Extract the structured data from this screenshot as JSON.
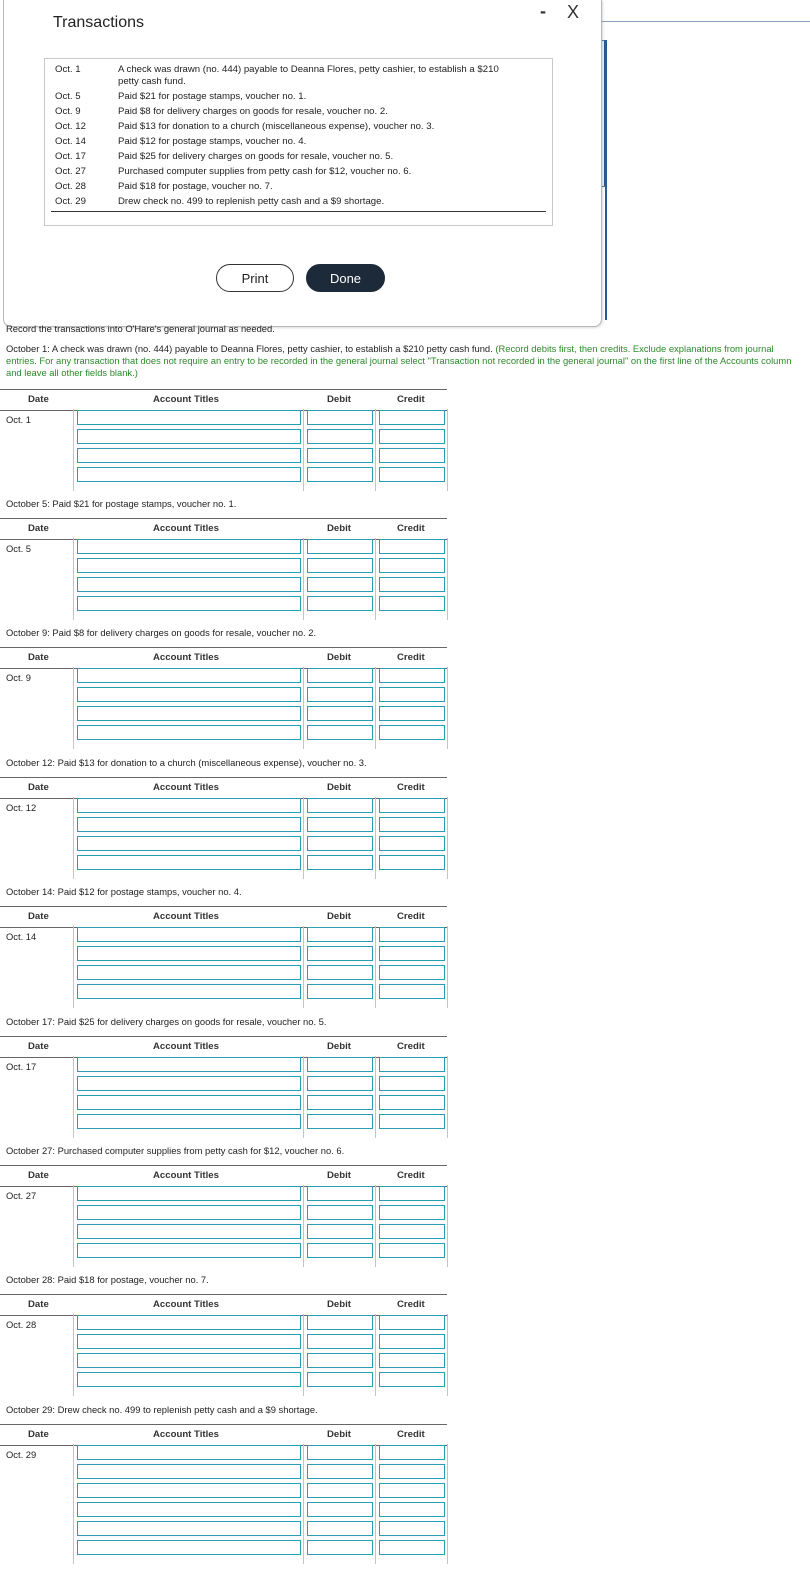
{
  "modal": {
    "title": "Transactions",
    "minimize": "-",
    "close": "X",
    "transactions": [
      {
        "date": "Oct. 1",
        "text": "A check was drawn (no. 444) payable to Deanna Flores, petty cashier, to establish a $210"
      },
      {
        "date": "",
        "text": "petty cash fund."
      },
      {
        "date": "Oct. 5",
        "text": "Paid $21 for postage stamps, voucher no. 1."
      },
      {
        "date": "Oct. 9",
        "text": "Paid $8 for delivery charges on goods for resale, voucher no. 2."
      },
      {
        "date": "Oct. 12",
        "text": "Paid $13 for donation to a church (miscellaneous expense), voucher no. 3."
      },
      {
        "date": "Oct. 14",
        "text": "Paid $12 for postage stamps, voucher no. 4."
      },
      {
        "date": "Oct. 17",
        "text": "Paid $25 for delivery charges on goods for resale, voucher no. 5."
      },
      {
        "date": "Oct. 27",
        "text": "Purchased computer supplies from petty cash for $12, voucher no. 6."
      },
      {
        "date": "Oct. 28",
        "text": "Paid $18 for postage, voucher no. 7."
      },
      {
        "date": "Oct. 29",
        "text": "Drew check no. 499 to replenish petty cash and a $9 shortage."
      }
    ],
    "print_label": "Print",
    "done_label": "Done"
  },
  "instructions": {
    "line1": "Record the transactions into O'Hare's general journal as needed.",
    "line2_black": "October 1: A check was drawn (no. 444) payable to Deanna Flores, petty cashier, to establish a $210 petty cash fund.",
    "line2_green": "(Record debits first, then credits. Exclude explanations from journal entries. For any transaction that does not require an entry to be recorded in the general journal select \"Transaction not recorded in the general journal\" on the first line of the Accounts column and leave all other fields blank.)"
  },
  "headers": {
    "date": "Date",
    "account": "Account Titles",
    "debit": "Debit",
    "credit": "Credit"
  },
  "journals": [
    {
      "caption": "",
      "date": "Oct. 1",
      "rows": 4
    },
    {
      "caption": "October 5: Paid $21 for postage stamps, voucher no. 1.",
      "date": "Oct. 5",
      "rows": 4
    },
    {
      "caption": "October 9: Paid $8 for delivery charges on goods for resale, voucher no. 2.",
      "date": "Oct. 9",
      "rows": 4
    },
    {
      "caption": "October 12: Paid $13 for donation to a church (miscellaneous expense), voucher no. 3.",
      "date": "Oct. 12",
      "rows": 4
    },
    {
      "caption": "October 14: Paid $12 for postage stamps, voucher no. 4.",
      "date": "Oct. 14",
      "rows": 4
    },
    {
      "caption": "October 17: Paid $25 for delivery charges on goods for resale, voucher no. 5.",
      "date": "Oct. 17",
      "rows": 4
    },
    {
      "caption": "October 27: Purchased computer supplies from petty cash for $12, voucher no. 6.",
      "date": "Oct. 27",
      "rows": 4
    },
    {
      "caption": "October 28: Paid $18 for postage, voucher no. 7.",
      "date": "Oct. 28",
      "rows": 4
    },
    {
      "caption": "October 29: Drew check no. 499 to replenish petty cash and a $9 shortage.",
      "date": "Oct. 29",
      "rows": 6
    }
  ]
}
